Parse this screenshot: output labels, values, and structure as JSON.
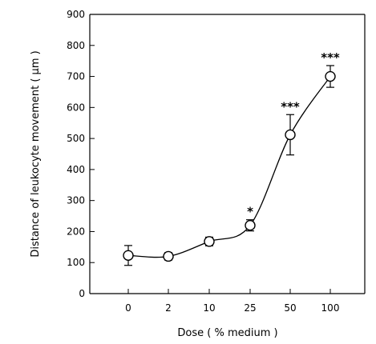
{
  "chart_data": {
    "type": "line",
    "xlabel": "Dose ( % medium )",
    "ylabel": "Distance of leukocyte movement ( μm )",
    "categories": [
      "0",
      "2",
      "10",
      "25",
      "50",
      "100"
    ],
    "values": [
      123,
      120,
      168,
      220,
      512,
      700
    ],
    "errors": [
      32,
      12,
      14,
      18,
      65,
      35
    ],
    "significance": [
      "",
      "",
      "",
      "*",
      "***",
      "***"
    ],
    "ylim": [
      0,
      900
    ],
    "yticks": [
      "0",
      "100",
      "200",
      "300",
      "400",
      "500",
      "600",
      "700",
      "800",
      "900"
    ],
    "grid": false,
    "marker": "open-circle",
    "smooth": true
  }
}
